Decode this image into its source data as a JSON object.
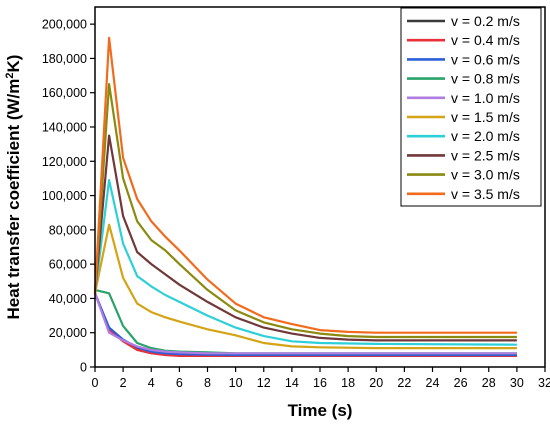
{
  "chart_data": {
    "type": "line",
    "xlabel": "Time (s)",
    "ylabel_main": "Heat transfer coefficient (W/m",
    "ylabel_sup": "2",
    "ylabel_end": "K)",
    "xlim": [
      0,
      32
    ],
    "ylim": [
      0,
      210000
    ],
    "xticks": [
      0,
      2,
      4,
      6,
      8,
      10,
      12,
      14,
      16,
      18,
      20,
      22,
      24,
      26,
      28,
      30,
      32
    ],
    "yticks": [
      0,
      20000,
      40000,
      60000,
      80000,
      100000,
      120000,
      140000,
      160000,
      180000,
      200000
    ],
    "ytick_labels": [
      "0",
      "20,000",
      "40,000",
      "60,000",
      "80,000",
      "100,000",
      "120,000",
      "140,000",
      "160,000",
      "180,000",
      "200,000"
    ],
    "legend_position": "top-right",
    "grid": false,
    "series": [
      {
        "name": "v = 0.2 m/s",
        "color": "#3a3a3a",
        "x": [
          0,
          1,
          2,
          3,
          4,
          5,
          6,
          8,
          10,
          15,
          20,
          30
        ],
        "y": [
          43000,
          22000,
          15000,
          11000,
          9500,
          8500,
          8000,
          7500,
          7200,
          7000,
          7000,
          7000
        ]
      },
      {
        "name": "v = 0.4 m/s",
        "color": "#e8303a",
        "x": [
          0,
          1,
          2,
          3,
          4,
          5,
          6,
          8,
          10,
          15,
          20,
          30
        ],
        "y": [
          43000,
          22000,
          15000,
          10000,
          8000,
          7000,
          6500,
          6500,
          6500,
          6500,
          6500,
          6500
        ]
      },
      {
        "name": "v = 0.6 m/s",
        "color": "#2d5fd8",
        "x": [
          0,
          1,
          2,
          3,
          4,
          5,
          6,
          8,
          10,
          15,
          20,
          30
        ],
        "y": [
          43000,
          23000,
          16000,
          11500,
          9000,
          8000,
          7500,
          7200,
          7000,
          7000,
          7000,
          7000
        ]
      },
      {
        "name": "v = 0.8 m/s",
        "color": "#2aa36a",
        "x": [
          0,
          1,
          2,
          3,
          4,
          5,
          6,
          8,
          10,
          15,
          20,
          30
        ],
        "y": [
          45000,
          43000,
          24000,
          14000,
          11000,
          9500,
          9000,
          8500,
          8000,
          8000,
          8000,
          8000
        ]
      },
      {
        "name": "v = 1.0 m/s",
        "color": "#b07de0",
        "x": [
          0,
          1,
          2,
          3,
          4,
          5,
          6,
          8,
          10,
          15,
          20,
          30
        ],
        "y": [
          43000,
          20000,
          15500,
          12000,
          10000,
          9000,
          8500,
          8000,
          8000,
          8000,
          8000,
          8000
        ]
      },
      {
        "name": "v = 1.5 m/s",
        "color": "#d4a316",
        "x": [
          0,
          1,
          2,
          3,
          4,
          5,
          6,
          8,
          10,
          12,
          14,
          16,
          20,
          30
        ],
        "y": [
          43000,
          83000,
          52000,
          37000,
          32000,
          29000,
          26500,
          22000,
          18500,
          14000,
          12000,
          11500,
          11000,
          11000
        ]
      },
      {
        "name": "v = 2.0 m/s",
        "color": "#2ed0d8",
        "x": [
          0,
          1,
          2,
          3,
          4,
          5,
          6,
          8,
          10,
          12,
          14,
          16,
          20,
          30
        ],
        "y": [
          43000,
          109000,
          72000,
          53000,
          47000,
          42000,
          38000,
          30000,
          23000,
          18000,
          15000,
          14000,
          13500,
          13000
        ]
      },
      {
        "name": "v = 2.5 m/s",
        "color": "#703838",
        "x": [
          0,
          1,
          2,
          3,
          4,
          5,
          6,
          8,
          10,
          12,
          14,
          16,
          18,
          20,
          30
        ],
        "y": [
          43000,
          135000,
          88000,
          67000,
          60000,
          54000,
          48000,
          38000,
          29000,
          23000,
          19500,
          17000,
          16000,
          15500,
          15500
        ]
      },
      {
        "name": "v = 3.0 m/s",
        "color": "#8a8a10",
        "x": [
          0,
          1,
          2,
          3,
          4,
          5,
          6,
          8,
          10,
          12,
          14,
          16,
          18,
          20,
          30
        ],
        "y": [
          43000,
          165000,
          110000,
          85000,
          74000,
          68000,
          60000,
          45000,
          33000,
          26000,
          22000,
          19500,
          18000,
          17500,
          17500
        ]
      },
      {
        "name": "v = 3.5 m/s",
        "color": "#f26b1d",
        "x": [
          0,
          1,
          2,
          3,
          4,
          5,
          6,
          8,
          10,
          12,
          14,
          16,
          18,
          20,
          30
        ],
        "y": [
          43000,
          192000,
          122000,
          98000,
          85000,
          76000,
          68000,
          51000,
          37000,
          29000,
          25000,
          21500,
          20500,
          20000,
          20000
        ]
      }
    ]
  }
}
